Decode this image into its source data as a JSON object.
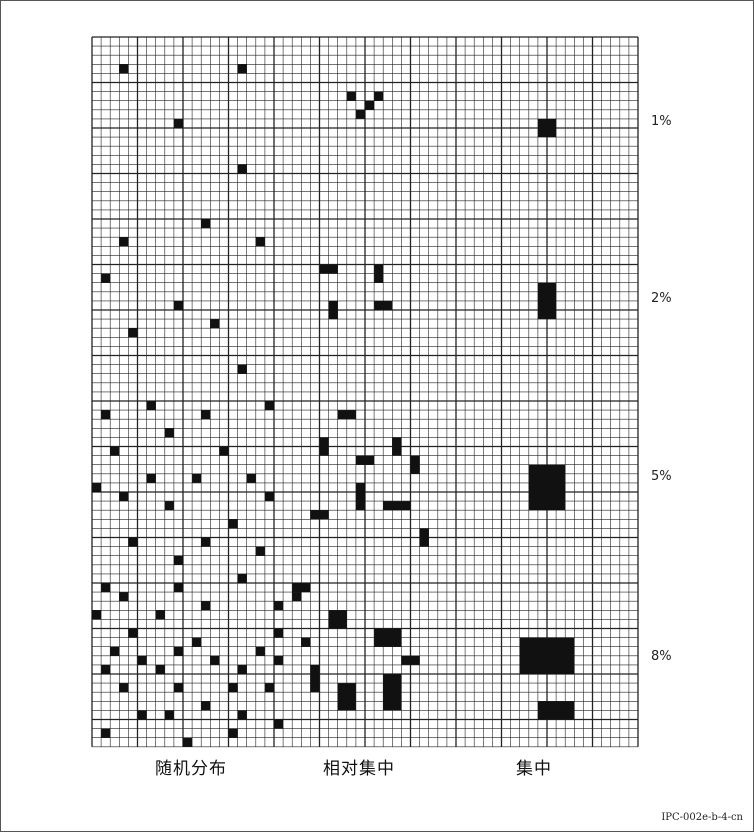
{
  "density_labels": [
    "1%",
    "2%",
    "5%",
    "8%"
  ],
  "column_labels": [
    "随机分布",
    "相对集中",
    "集中"
  ],
  "reference_code": "IPC-002e-b-4-cn",
  "colors": {
    "ink": "#111111",
    "grid": "#222222",
    "frame": "#555555"
  }
}
